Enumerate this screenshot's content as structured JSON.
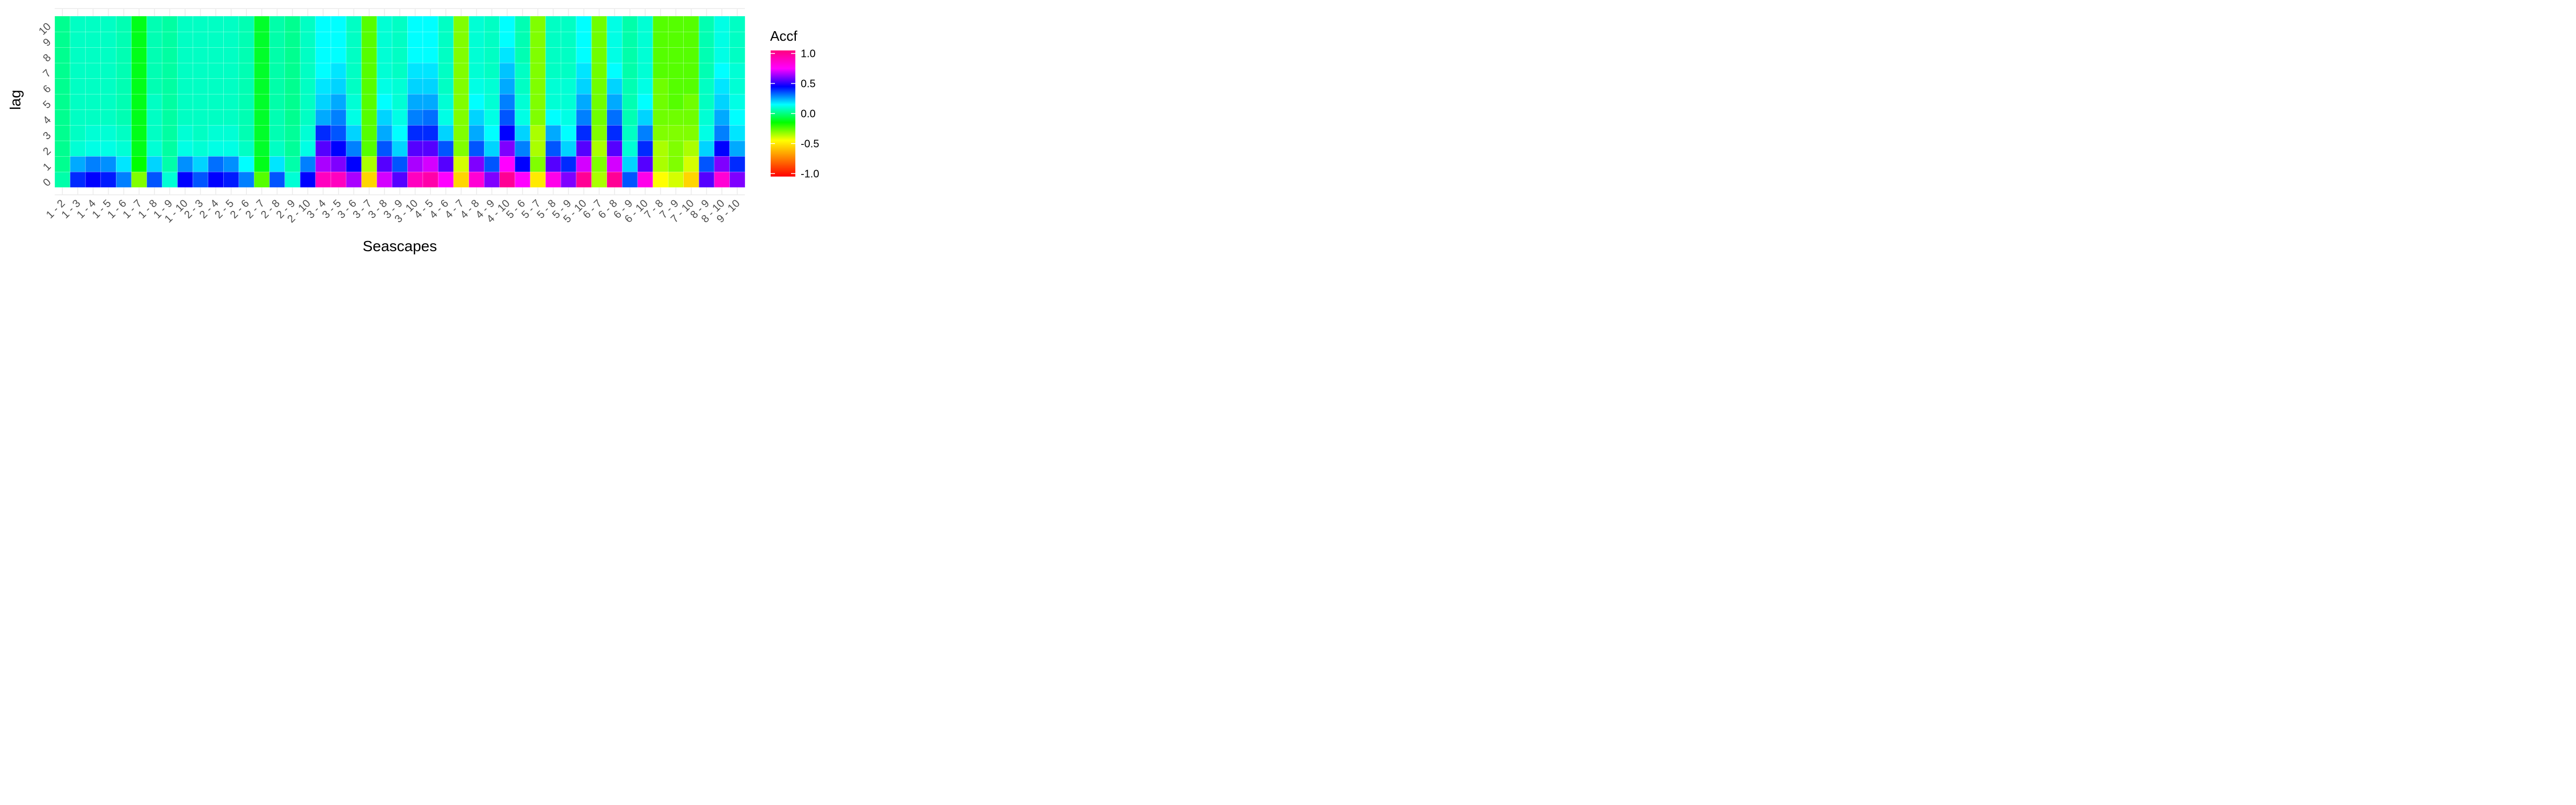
{
  "chart_data": {
    "type": "heatmap",
    "title": "",
    "xlabel": "Seascapes",
    "ylabel": "lag",
    "x_categories": [
      "1 - 2",
      "1 - 3",
      "1 - 4",
      "1 - 5",
      "1 - 6",
      "1 - 7",
      "1 - 8",
      "1 - 9",
      "1 - 10",
      "2 - 3",
      "2 - 4",
      "2 - 5",
      "2 - 6",
      "2 - 7",
      "2 - 8",
      "2 - 9",
      "2 - 10",
      "3 - 4",
      "3 - 5",
      "3 - 6",
      "3 - 7",
      "3 - 8",
      "3 - 9",
      "3 - 10",
      "4 - 5",
      "4 - 6",
      "4 - 7",
      "4 - 8",
      "4 - 9",
      "4 - 10",
      "5 - 6",
      "5 - 7",
      "5 - 8",
      "5 - 9",
      "5 - 10",
      "6 - 7",
      "6 - 8",
      "6 - 9",
      "6 - 10",
      "7 - 8",
      "7 - 9",
      "7 - 10",
      "8 - 9",
      "8 - 10",
      "9 - 10"
    ],
    "y_categories": [
      "0",
      "1",
      "2",
      "3",
      "4",
      "5",
      "6",
      "7",
      "8",
      "9",
      "10"
    ],
    "legend": {
      "title": "Accf",
      "ticks": [
        "1.0",
        "0.5",
        "0.0",
        "-0.5",
        "-1.0"
      ],
      "tick_values": [
        1.0,
        0.5,
        0.0,
        -0.5,
        -1.0
      ],
      "range": [
        -1.05,
        1.05
      ],
      "placement": "right",
      "colors": [
        "#ff0000",
        "#ff8000",
        "#ffff00",
        "#00ff00",
        "#00ffff",
        "#0000ff",
        "#ff00ff",
        "#ff0080"
      ]
    },
    "grid_color": "#ebebeb",
    "values_by_column": [
      [
        0.05,
        0.02,
        0.02,
        0.02,
        0.02,
        0.02,
        0.02,
        0.02,
        0.02,
        0.02,
        0.02
      ],
      [
        0.4,
        0.25,
        0.1,
        0.08,
        0.08,
        0.08,
        0.08,
        0.08,
        0.08,
        0.08,
        0.08
      ],
      [
        0.45,
        0.3,
        0.12,
        0.1,
        0.08,
        0.08,
        0.08,
        0.08,
        0.08,
        0.08,
        0.08
      ],
      [
        0.42,
        0.28,
        0.12,
        0.1,
        0.08,
        0.08,
        0.08,
        0.08,
        0.08,
        0.08,
        0.08
      ],
      [
        0.3,
        0.18,
        0.1,
        0.08,
        0.06,
        0.06,
        0.06,
        0.06,
        0.06,
        0.06,
        0.06
      ],
      [
        -0.3,
        -0.15,
        -0.12,
        -0.12,
        -0.12,
        -0.12,
        -0.12,
        -0.12,
        -0.12,
        -0.12,
        -0.12
      ],
      [
        0.35,
        0.2,
        0.1,
        0.08,
        0.08,
        0.08,
        0.06,
        0.06,
        0.06,
        0.06,
        0.06
      ],
      [
        0.1,
        0.05,
        0.04,
        0.04,
        0.04,
        0.04,
        0.04,
        0.04,
        0.04,
        0.04,
        0.04
      ],
      [
        0.45,
        0.28,
        0.12,
        0.1,
        0.08,
        0.08,
        0.08,
        0.08,
        0.08,
        0.08,
        0.08
      ],
      [
        0.35,
        0.2,
        0.1,
        0.08,
        0.08,
        0.08,
        0.08,
        0.08,
        0.08,
        0.08,
        0.08
      ],
      [
        0.45,
        0.32,
        0.12,
        0.1,
        0.08,
        0.08,
        0.08,
        0.08,
        0.08,
        0.08,
        0.08
      ],
      [
        0.42,
        0.28,
        0.12,
        0.1,
        0.08,
        0.08,
        0.08,
        0.08,
        0.08,
        0.08,
        0.08
      ],
      [
        0.3,
        0.15,
        0.08,
        0.06,
        0.06,
        0.06,
        0.06,
        0.06,
        0.06,
        0.06,
        0.06
      ],
      [
        -0.25,
        -0.12,
        -0.1,
        -0.1,
        -0.1,
        -0.1,
        -0.1,
        -0.1,
        -0.1,
        -0.1,
        -0.1
      ],
      [
        0.35,
        0.18,
        0.08,
        0.06,
        0.06,
        0.05,
        0.05,
        0.05,
        0.05,
        0.05,
        0.05
      ],
      [
        0.1,
        0.05,
        0.03,
        0.03,
        0.02,
        0.02,
        0.02,
        0.02,
        0.02,
        0.02,
        0.02
      ],
      [
        0.45,
        0.3,
        0.12,
        0.1,
        0.08,
        0.08,
        0.08,
        0.08,
        0.08,
        0.08,
        0.08
      ],
      [
        0.9,
        0.65,
        0.55,
        0.4,
        0.25,
        0.2,
        0.18,
        0.15,
        0.15,
        0.15,
        0.15
      ],
      [
        0.9,
        0.6,
        0.45,
        0.35,
        0.3,
        0.25,
        0.2,
        0.18,
        0.15,
        0.15,
        0.15
      ],
      [
        0.65,
        0.45,
        0.3,
        0.2,
        0.12,
        0.1,
        0.08,
        0.08,
        0.08,
        0.08,
        0.08
      ],
      [
        -0.55,
        -0.35,
        -0.25,
        -0.25,
        -0.25,
        -0.25,
        -0.25,
        -0.25,
        -0.25,
        -0.25,
        -0.25
      ],
      [
        0.7,
        0.55,
        0.35,
        0.25,
        0.2,
        0.15,
        0.12,
        0.1,
        0.1,
        0.1,
        0.1
      ],
      [
        0.55,
        0.35,
        0.2,
        0.15,
        0.12,
        0.1,
        0.1,
        0.08,
        0.08,
        0.08,
        0.08
      ],
      [
        0.9,
        0.65,
        0.55,
        0.4,
        0.3,
        0.25,
        0.2,
        0.18,
        0.15,
        0.15,
        0.15
      ],
      [
        0.95,
        0.7,
        0.55,
        0.4,
        0.32,
        0.25,
        0.2,
        0.18,
        0.15,
        0.15,
        0.15
      ],
      [
        0.75,
        0.55,
        0.35,
        0.2,
        0.12,
        0.1,
        0.08,
        0.08,
        0.08,
        0.08,
        0.08
      ],
      [
        -0.55,
        -0.4,
        -0.3,
        -0.3,
        -0.3,
        -0.3,
        -0.3,
        -0.3,
        -0.3,
        -0.3,
        -0.3
      ],
      [
        0.85,
        0.6,
        0.35,
        0.25,
        0.2,
        0.15,
        0.12,
        0.1,
        0.1,
        0.1,
        0.1
      ],
      [
        0.6,
        0.35,
        0.2,
        0.15,
        0.12,
        0.1,
        0.1,
        0.08,
        0.08,
        0.08,
        0.08
      ],
      [
        1.0,
        0.75,
        0.6,
        0.45,
        0.35,
        0.3,
        0.25,
        0.22,
        0.18,
        0.15,
        0.15
      ],
      [
        0.75,
        0.45,
        0.3,
        0.2,
        0.12,
        0.1,
        0.08,
        0.08,
        0.06,
        0.06,
        0.06
      ],
      [
        -0.5,
        -0.3,
        -0.35,
        -0.35,
        -0.3,
        -0.3,
        -0.3,
        -0.3,
        -0.3,
        -0.3,
        -0.3
      ],
      [
        0.8,
        0.55,
        0.35,
        0.25,
        0.15,
        0.1,
        0.1,
        0.08,
        0.08,
        0.08,
        0.08
      ],
      [
        0.6,
        0.4,
        0.2,
        0.15,
        0.12,
        0.1,
        0.1,
        0.08,
        0.08,
        0.08,
        0.08
      ],
      [
        1.0,
        0.7,
        0.55,
        0.4,
        0.3,
        0.25,
        0.2,
        0.18,
        0.15,
        0.15,
        0.15
      ],
      [
        -0.35,
        -0.3,
        -0.35,
        -0.3,
        -0.28,
        -0.28,
        -0.28,
        -0.28,
        -0.28,
        -0.28,
        -0.28
      ],
      [
        1.0,
        0.7,
        0.55,
        0.4,
        0.32,
        0.25,
        0.2,
        0.15,
        0.12,
        0.12,
        0.12
      ],
      [
        0.35,
        0.2,
        0.1,
        0.08,
        0.06,
        0.06,
        0.06,
        0.05,
        0.05,
        0.05,
        0.05
      ],
      [
        0.8,
        0.55,
        0.4,
        0.3,
        0.2,
        0.15,
        0.12,
        0.1,
        0.1,
        0.1,
        0.1
      ],
      [
        -0.45,
        -0.35,
        -0.35,
        -0.3,
        -0.28,
        -0.28,
        -0.28,
        -0.25,
        -0.25,
        -0.25,
        -0.25
      ],
      [
        -0.4,
        -0.3,
        -0.3,
        -0.3,
        -0.28,
        -0.25,
        -0.25,
        -0.25,
        -0.25,
        -0.25,
        -0.25
      ],
      [
        -0.55,
        -0.4,
        -0.35,
        -0.3,
        -0.28,
        -0.28,
        -0.25,
        -0.25,
        -0.25,
        -0.25,
        -0.25
      ],
      [
        0.55,
        0.35,
        0.2,
        0.12,
        0.1,
        0.08,
        0.08,
        0.06,
        0.06,
        0.06,
        0.06
      ],
      [
        0.85,
        0.6,
        0.45,
        0.3,
        0.25,
        0.2,
        0.18,
        0.15,
        0.12,
        0.12,
        0.12
      ],
      [
        0.6,
        0.4,
        0.25,
        0.18,
        0.15,
        0.12,
        0.1,
        0.1,
        0.08,
        0.08,
        0.08
      ]
    ]
  }
}
